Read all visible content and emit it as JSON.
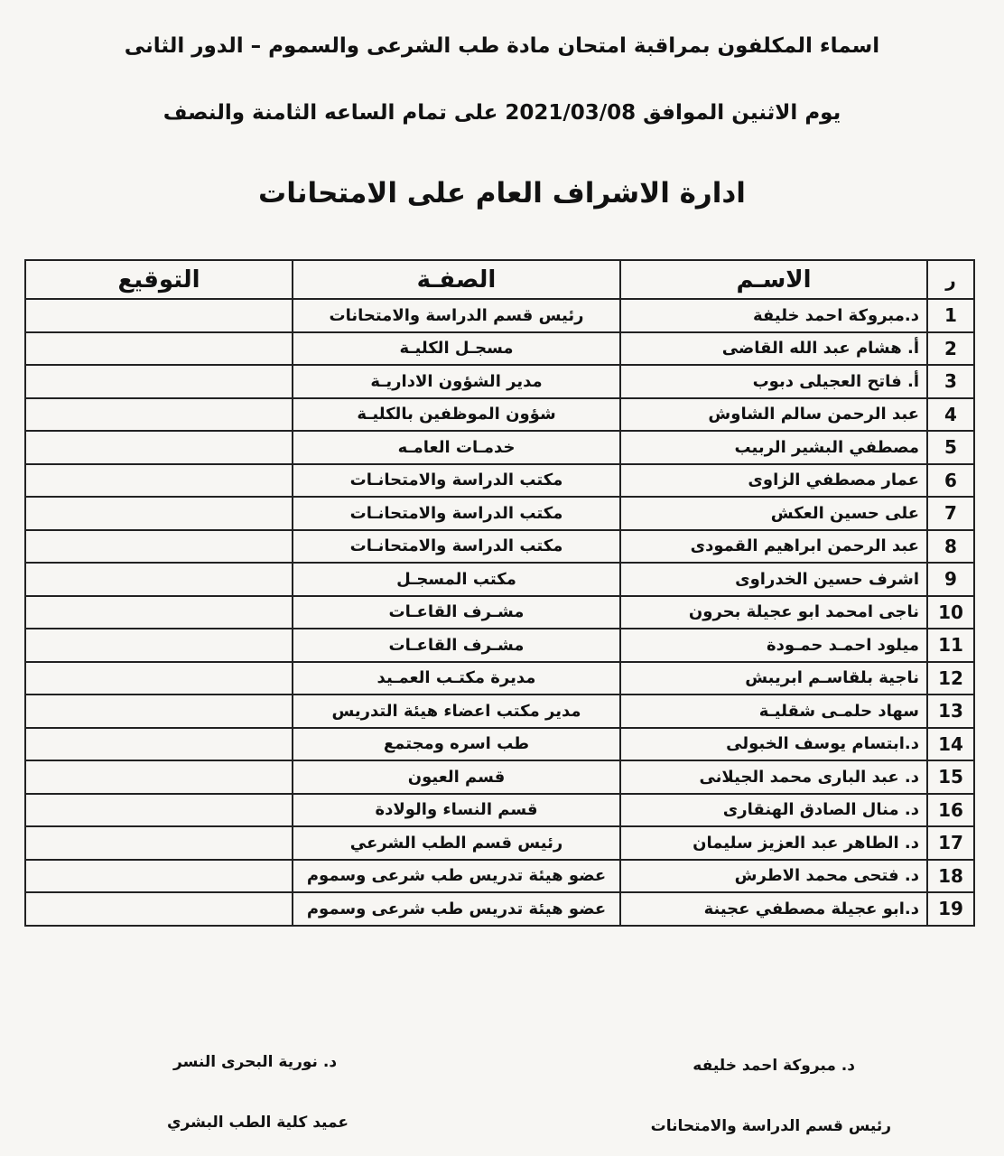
{
  "header": {
    "title_line1": "اسماء المكلفون بمراقبة امتحان مادة طب الشرعى والسموم – الدور الثانى",
    "title_line2": "يوم الاثنين الموافق 2021/03/08 على تمام الساعه الثامنة والنصف",
    "section_title": "ادارة الاشراف العام على الامتحانات"
  },
  "table": {
    "columns": [
      "ر",
      "الاسـم",
      "الصفـة",
      "التوقيع"
    ],
    "rows": [
      {
        "n": "1",
        "name": "د.مبروكة احمد خليفة",
        "role": "رئيس قسم الدراسة والامتحانات"
      },
      {
        "n": "2",
        "name": "أ. هشام عبد الله القاضى",
        "role": "مسجـل الكليـة"
      },
      {
        "n": "3",
        "name": "أ. فاتح العجيلى دبوب",
        "role": "مدير الشؤون الاداريـة"
      },
      {
        "n": "4",
        "name": "عبد الرحمن سالم الشاوش",
        "role": "شؤون الموظفين بالكليـة"
      },
      {
        "n": "5",
        "name": "مصطفي البشير الربيب",
        "role": "خدمـات العامـه"
      },
      {
        "n": "6",
        "name": "عمار مصطفي الزاوى",
        "role": "مكتب الدراسة والامتحانـات"
      },
      {
        "n": "7",
        "name": "على حسين العكش",
        "role": "مكتب الدراسة والامتحانـات"
      },
      {
        "n": "8",
        "name": "عبد الرحمن ابراهيم القمودى",
        "role": "مكتب الدراسة والامتحانـات"
      },
      {
        "n": "9",
        "name": "اشرف حسين الخدراوى",
        "role": "مكتب المسجـل"
      },
      {
        "n": "10",
        "name": "ناجى امحمد ابو عجيلة بحرون",
        "role": "مشـرف القاعـات"
      },
      {
        "n": "11",
        "name": "ميلود احمـد حمـودة",
        "role": "مشـرف القاعـات"
      },
      {
        "n": "12",
        "name": "ناجية بلقاسـم ابريبش",
        "role": "مديرة مكتـب العمـيد"
      },
      {
        "n": "13",
        "name": "سهاد حلمـى شقليـة",
        "role": "مدير مكتب اعضاء هيئة التدريس"
      },
      {
        "n": "14",
        "name": "د.ابتسام يوسف الخبولى",
        "role": "طب اسره ومجتمع"
      },
      {
        "n": "15",
        "name": "د. عبد البارى محمد الجيلانى",
        "role": "قسم العيون"
      },
      {
        "n": "16",
        "name": "د. منال الصادق الهنقارى",
        "role": "قسم النساء والولادة"
      },
      {
        "n": "17",
        "name": "د. الطاهر عبد العزيز سليمان",
        "role": "رئيس قسم الطب الشرعي"
      },
      {
        "n": "18",
        "name": "د. فتحى محمد الاطرش",
        "role": "عضو هيئة تدريس طب شرعى وسموم"
      },
      {
        "n": "19",
        "name": "د.ابو عجيلة مصطفي عجينة",
        "role": "عضو هيئة تدريس طب شرعى وسموم"
      }
    ]
  },
  "footer": {
    "right_name": "د. مبروكة احمد خليفه",
    "right_title": "رئيس قسم الدراسة والامتحانات",
    "left_name": "د. نورية البحرى النسر",
    "left_title": "عميد كلية الطب البشري"
  }
}
